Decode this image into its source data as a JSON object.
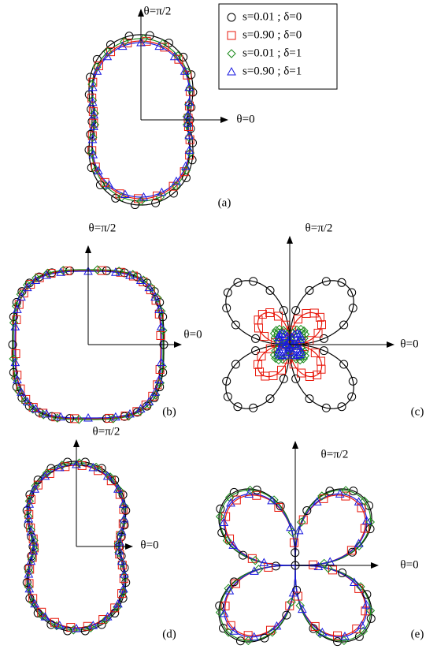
{
  "legend": [
    {
      "name": "s=0.01 ; δ=0",
      "color": "#000000",
      "marker": "circle"
    },
    {
      "name": "s=0.90 ; δ=0",
      "color": "#e8180c",
      "marker": "square"
    },
    {
      "name": "s=0.01 ; δ=1",
      "color": "#1a8a1a",
      "marker": "diamond"
    },
    {
      "name": "s=0.90 ; δ=1",
      "color": "#1a1ae0",
      "marker": "triangle"
    }
  ],
  "panels": [
    {
      "label": "(a)",
      "x_axis_label": "θ=0",
      "y_axis_label": "θ=π/2"
    },
    {
      "label": "(b)",
      "x_axis_label": "θ=0",
      "y_axis_label": "θ=π/2"
    },
    {
      "label": "(c)",
      "x_axis_label": "θ=0",
      "y_axis_label": "θ=π/2"
    },
    {
      "label": "(d)",
      "x_axis_label": "θ=0",
      "y_axis_label": "θ=π/2"
    },
    {
      "label": "(e)",
      "x_axis_label": "θ=0",
      "y_axis_label": "θ=π/2"
    }
  ]
}
